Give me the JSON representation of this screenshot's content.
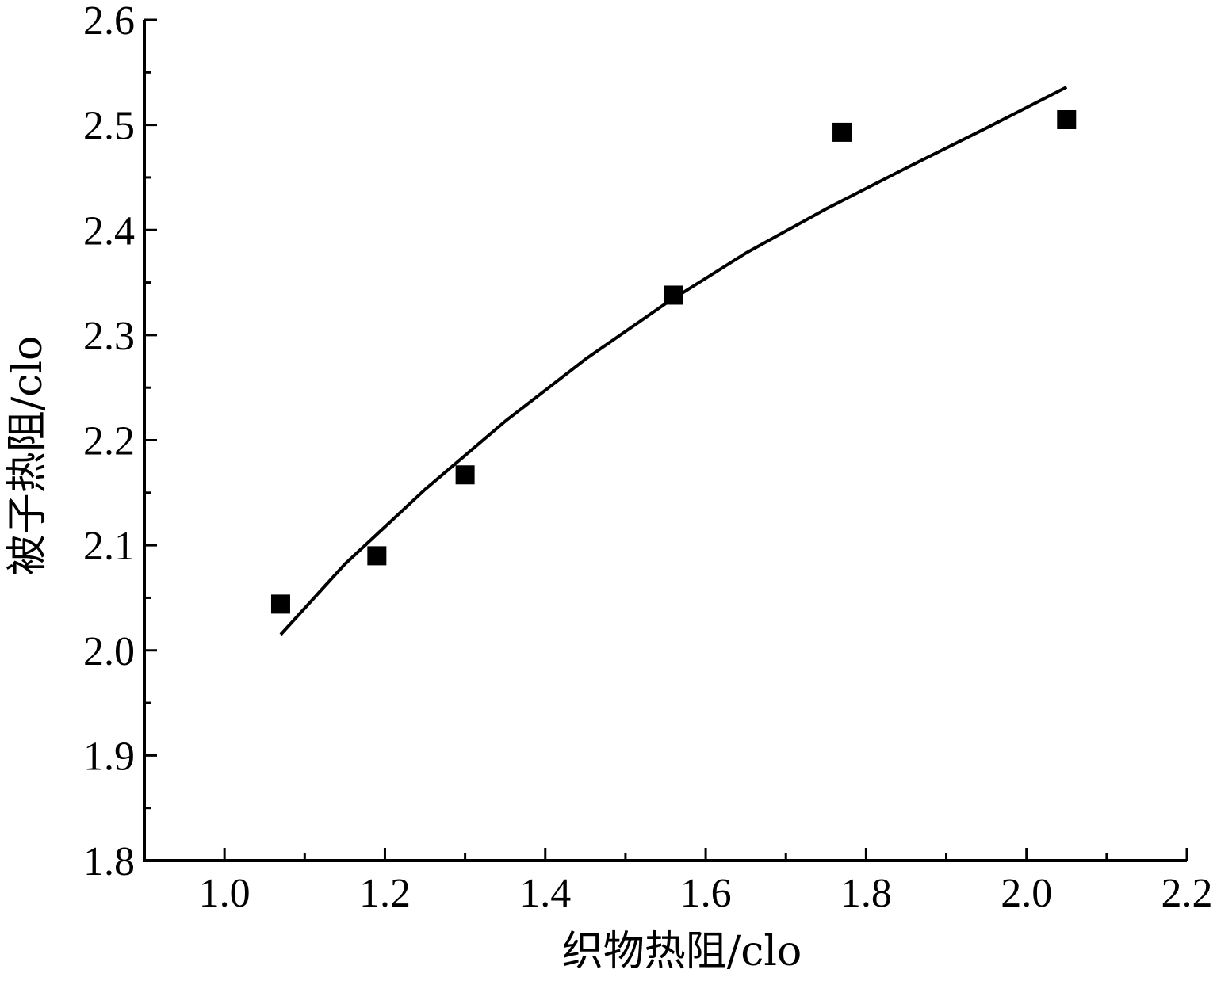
{
  "chart_data": {
    "type": "scatter",
    "xlabel": "织物热阻/clo",
    "ylabel": "被子热阻/clo",
    "xlim": [
      0.9,
      2.2
    ],
    "ylim": [
      1.8,
      2.6
    ],
    "x_ticks": [
      "1.0",
      "1.2",
      "1.4",
      "1.6",
      "1.8",
      "2.0",
      "2.2"
    ],
    "y_ticks": [
      "1.8",
      "1.9",
      "2.0",
      "2.1",
      "2.2",
      "2.3",
      "2.4",
      "2.5",
      "2.6"
    ],
    "x_tick_values": [
      1.0,
      1.2,
      1.4,
      1.6,
      1.8,
      2.0,
      2.2
    ],
    "y_tick_values": [
      1.8,
      1.9,
      2.0,
      2.1,
      2.2,
      2.3,
      2.4,
      2.5,
      2.6
    ],
    "grid": false,
    "series": [
      {
        "type": "scatter",
        "marker": "square",
        "color": "#000000",
        "x": [
          1.07,
          1.19,
          1.3,
          1.56,
          1.77,
          2.05
        ],
        "y": [
          2.044,
          2.09,
          2.167,
          2.338,
          2.493,
          2.505
        ]
      },
      {
        "type": "line",
        "color": "#000000",
        "x": [
          1.07,
          1.15,
          1.25,
          1.35,
          1.45,
          1.55,
          1.65,
          1.75,
          1.85,
          1.95,
          2.05
        ],
        "y": [
          2.015,
          2.082,
          2.153,
          2.218,
          2.277,
          2.33,
          2.378,
          2.42,
          2.459,
          2.497,
          2.536
        ]
      }
    ]
  }
}
